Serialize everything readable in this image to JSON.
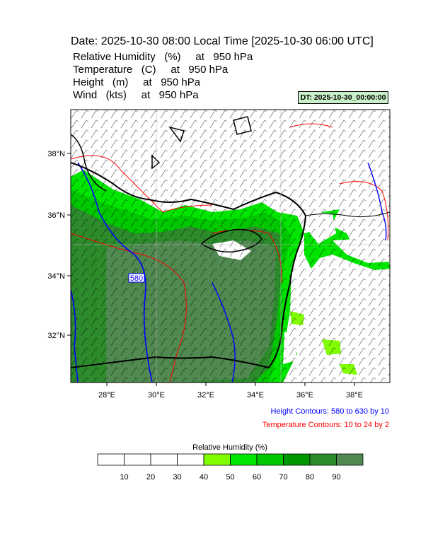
{
  "header": {
    "title": "Date: 2025-10-30  08:00 Local Time [2025-10-30  06:00 UTC]",
    "fields": [
      "Relative Humidity   (%)     at   950 hPa",
      "Temperature   (C)     at   950 hPa",
      "Height   (m)     at   950 hPa",
      "Wind   (kts)     at   950 hPa"
    ],
    "dt_label": "DT: 2025-10-30_00:00:00"
  },
  "map": {
    "lat_labels": [
      "38°N",
      "36°N",
      "34°N",
      "32°N"
    ],
    "lon_labels": [
      "28°E",
      "30°E",
      "32°E",
      "34°E",
      "36°E",
      "38°E"
    ],
    "contour_label": "580",
    "colors": {
      "height_contour": "#0000ff",
      "temperature_contour": "#ff0000",
      "coastline": "#000000",
      "rh_50": "#80ff00",
      "rh_60": "#00e600",
      "rh_70": "#00c800",
      "rh_80": "#009600",
      "rh_90": "#2c8c2c",
      "rh_max": "#508a50"
    }
  },
  "notes": {
    "height": "Height Contours: 580 to 630 by 10",
    "temperature": "Temperature Contours: 10 to 24 by 2"
  },
  "colorbar": {
    "title": "Relative Humidity  (%)",
    "labels": [
      "10",
      "20",
      "30",
      "40",
      "50",
      "60",
      "70",
      "80",
      "90"
    ],
    "colors": [
      "#ffffff",
      "#ffffff",
      "#ffffff",
      "#ffffff",
      "#80ff00",
      "#00e600",
      "#00c800",
      "#009600",
      "#2c8c2c",
      "#508a50"
    ]
  }
}
